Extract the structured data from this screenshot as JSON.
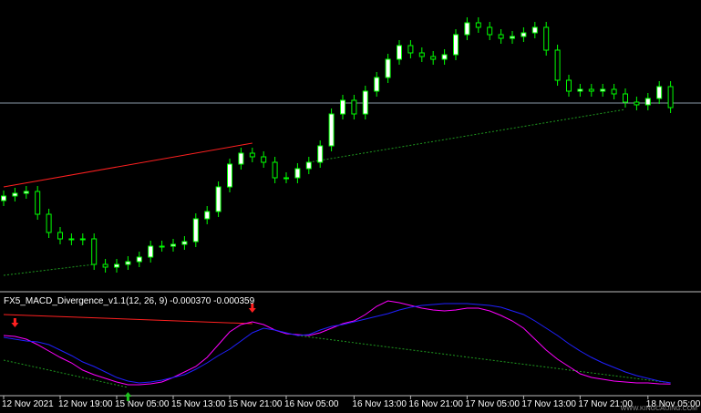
{
  "chart_data": [
    {
      "type": "candlestick",
      "categories": [
        "12 Nov 2021",
        null,
        null,
        null,
        null,
        "12 Nov 19:00",
        null,
        null,
        null,
        null,
        "15 Nov 05:00",
        null,
        null,
        null,
        null,
        "15 Nov 13:00",
        null,
        null,
        null,
        null,
        "15 Nov 21:00",
        null,
        null,
        null,
        null,
        "16 Nov 05:00",
        null,
        null,
        null,
        null,
        null,
        "16 Nov 13:00",
        null,
        null,
        null,
        null,
        "16 Nov 21:00",
        null,
        null,
        null,
        null,
        "17 Nov 05:00",
        null,
        null,
        null,
        null,
        "17 Nov 13:00",
        null,
        null,
        null,
        null,
        "17 Nov 21:00",
        null,
        null,
        null,
        null,
        null,
        "18 Nov 05:00",
        null,
        null
      ],
      "open": [
        100,
        105,
        108,
        110,
        85,
        65,
        58,
        57,
        58,
        30,
        27,
        30,
        33,
        38,
        50,
        50,
        52,
        55,
        80,
        88,
        115,
        140,
        152,
        148,
        142,
        125,
        125,
        135,
        142,
        160,
        195,
        210,
        195,
        220,
        235,
        255,
        270,
        262,
        258,
        255,
        260,
        282,
        295,
        290,
        282,
        278,
        280,
        284,
        290,
        265,
        232,
        220,
        222,
        220,
        222,
        217,
        208,
        205,
        212,
        225
      ],
      "high": [
        111,
        114,
        116,
        116,
        91,
        71,
        64,
        64,
        64,
        36,
        36,
        39,
        44,
        56,
        56,
        58,
        61,
        86,
        94,
        121,
        146,
        158,
        158,
        154,
        148,
        131,
        141,
        148,
        166,
        201,
        216,
        216,
        226,
        241,
        261,
        276,
        276,
        268,
        264,
        266,
        288,
        301,
        301,
        296,
        288,
        286,
        290,
        296,
        296,
        271,
        238,
        228,
        228,
        228,
        228,
        223,
        214,
        218,
        231,
        231
      ],
      "low": [
        94,
        99,
        102,
        79,
        59,
        52,
        51,
        51,
        24,
        21,
        21,
        24,
        27,
        32,
        44,
        44,
        46,
        49,
        74,
        82,
        109,
        134,
        142,
        136,
        119,
        119,
        119,
        129,
        136,
        154,
        189,
        189,
        189,
        214,
        229,
        249,
        256,
        252,
        249,
        249,
        254,
        276,
        284,
        276,
        272,
        272,
        274,
        278,
        259,
        226,
        214,
        214,
        214,
        214,
        211,
        202,
        199,
        199,
        206,
        196
      ],
      "close": [
        105,
        108,
        110,
        85,
        65,
        58,
        57,
        58,
        30,
        27,
        30,
        33,
        38,
        50,
        50,
        52,
        55,
        80,
        88,
        115,
        140,
        152,
        148,
        142,
        125,
        125,
        135,
        142,
        160,
        195,
        210,
        195,
        220,
        235,
        255,
        270,
        262,
        258,
        255,
        260,
        282,
        295,
        290,
        282,
        278,
        280,
        284,
        290,
        265,
        232,
        220,
        222,
        220,
        222,
        217,
        208,
        205,
        212,
        225,
        202
      ],
      "ylim": [
        2,
        320
      ],
      "up_color": "#00ff00",
      "down_color": "#00ff00",
      "up_fill": "#ffffff",
      "down_fill": "#000000",
      "hline": 207,
      "trendlines": [
        {
          "from": [
            0,
            115
          ],
          "to": [
            22,
            163
          ],
          "color": "#ff2020",
          "dashed": false
        },
        {
          "from": [
            0,
            18
          ],
          "to": [
            8,
            30
          ],
          "color": "#1f9a1f",
          "dashed": true
        },
        {
          "from": [
            27,
            142
          ],
          "to": [
            55,
            200
          ],
          "color": "#1f9a1f",
          "dashed": true
        }
      ]
    },
    {
      "type": "line",
      "title": "FX5_MACD_Divergence_v1.1(12, 26, 9) -0.000370 -0.000359",
      "ylim": [
        -0.000464,
        0.000424
      ],
      "series": [
        {
          "color": "#ff00ff",
          "values": [
            5.6e-05,
            4.8e-05,
            2.4e-05,
            -2.4e-05,
            -8e-05,
            -0.000136,
            -0.000184,
            -0.000248,
            -0.000288,
            -0.00032,
            -0.000352,
            -0.000376,
            -0.000376,
            -0.000368,
            -0.000352,
            -0.000312,
            -0.000264,
            -0.000216,
            -0.000136,
            -2.4e-05,
            8.8e-05,
            0.000152,
            0.000176,
            0.000152,
            0.000104,
            7.2e-05,
            6.4e-05,
            5.6e-05,
            8e-05,
            0.00012,
            0.00016,
            0.000184,
            0.00024,
            0.000312,
            0.00036,
            0.000344,
            0.00032,
            0.000296,
            0.00028,
            0.000272,
            0.00028,
            0.000296,
            0.000296,
            0.000272,
            0.000232,
            0.000184,
            0.00012,
            2.4e-05,
            -7.2e-05,
            -0.000152,
            -0.000216,
            -0.00028,
            -0.000312,
            -0.000328,
            -0.000344,
            -0.000352,
            -0.00036,
            -0.00036,
            -0.000368,
            -0.00037
          ]
        },
        {
          "color": "#2020ff",
          "values": [
            4e-05,
            2.4e-05,
            8e-06,
            0,
            -2.4e-05,
            -7.2e-05,
            -0.00012,
            -0.000176,
            -0.000216,
            -0.000264,
            -0.000312,
            -0.000344,
            -0.00036,
            -0.000352,
            -0.000336,
            -0.000312,
            -0.000288,
            -0.00024,
            -0.000184,
            -0.00012,
            -6.4e-05,
            8e-06,
            8e-05,
            0.00012,
            0.000104,
            8e-05,
            5.6e-05,
            6.4e-05,
            0.000104,
            0.000136,
            0.000152,
            0.000176,
            0.0002,
            0.000224,
            0.000248,
            0.00028,
            0.000304,
            0.00032,
            0.000328,
            0.000336,
            0.000336,
            0.000336,
            0.000328,
            0.00032,
            0.000304,
            0.000272,
            0.00024,
            0.000184,
            0.00012,
            5.6e-05,
            -1.6e-05,
            -8e-05,
            -0.000136,
            -0.000184,
            -0.000224,
            -0.000264,
            -0.000296,
            -0.00032,
            -0.000344,
            -0.000359
          ]
        }
      ],
      "trendlines": [
        {
          "from": [
            0,
            0.00024
          ],
          "to": [
            22,
            0.00016
          ],
          "color": "#ff2020",
          "dashed": false
        },
        {
          "from": [
            0,
            -0.00016
          ],
          "to": [
            11,
            -0.0004
          ],
          "color": "#1f9a1f",
          "dashed": true
        },
        {
          "from": [
            26,
            5.6e-05
          ],
          "to": [
            59,
            -0.00036
          ],
          "color": "#1f9a1f",
          "dashed": true
        }
      ],
      "signals": [
        {
          "at": 1,
          "direction": "down",
          "color": "#ff2020"
        },
        {
          "at": 22,
          "direction": "down",
          "color": "#ff2020"
        },
        {
          "at": 11,
          "direction": "up",
          "color": "#20c020"
        }
      ]
    }
  ],
  "watermark": "WWW.KINGCAIJING.COM"
}
